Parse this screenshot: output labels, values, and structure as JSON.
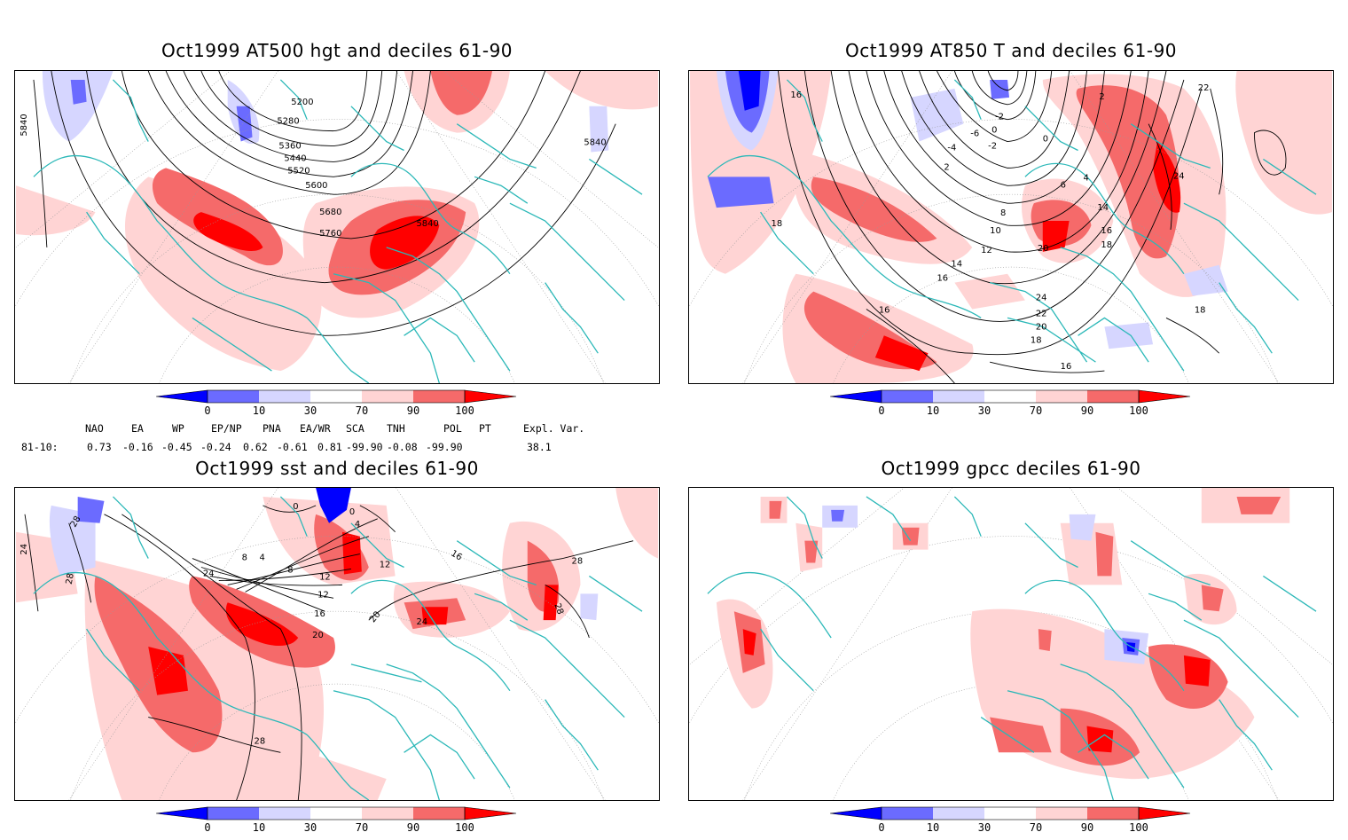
{
  "panels": [
    {
      "title": "Oct1999 AT500 hgt and deciles 61-90"
    },
    {
      "title": "Oct1999 AT850 T and deciles 61-90"
    },
    {
      "title": "Oct1999 sst and deciles 61-90"
    },
    {
      "title": "Oct1999 gpcc deciles 61-90"
    }
  ],
  "colorbar": {
    "ticks": [
      "0",
      "10",
      "30",
      "70",
      "90",
      "100"
    ],
    "colors": [
      "#0000ff",
      "#6b6bff",
      "#d6d6ff",
      "#ffffff",
      "#ffd4d4",
      "#f56a6a",
      "#ff0000"
    ]
  },
  "contour_labels": {
    "hgt": [
      "5840",
      "5200",
      "5280",
      "5360",
      "5440",
      "5520",
      "5600",
      "5680",
      "5760",
      "5840",
      "5840"
    ],
    "t850": [
      "16",
      "2",
      "0",
      "-2",
      "-6",
      "-4",
      "-2",
      "2",
      "0",
      "4",
      "6",
      "8",
      "10",
      "12",
      "14",
      "16",
      "18",
      "14",
      "16",
      "18",
      "20",
      "22",
      "24",
      "20",
      "22",
      "24",
      "16",
      "18",
      "16",
      "18"
    ],
    "sst": [
      "24",
      "28",
      "28",
      "0",
      "0",
      "4",
      "8",
      "4",
      "8",
      "12",
      "12",
      "16",
      "20",
      "20",
      "24",
      "12",
      "16",
      "24",
      "28",
      "28",
      "28"
    ]
  },
  "indices": {
    "headers": [
      "NAO",
      "EA",
      "WP",
      "EP/NP",
      "PNA",
      "EA/WR",
      "SCA",
      "TNH",
      "POL",
      "PT",
      "Expl. Var."
    ],
    "row_label": "81-10:",
    "values": [
      "0.73",
      "-0.16",
      "-0.45",
      "-0.24",
      "0.62",
      "-0.61",
      "0.81",
      "-99.90",
      "-0.08",
      "-99.90",
      "38.1"
    ]
  }
}
